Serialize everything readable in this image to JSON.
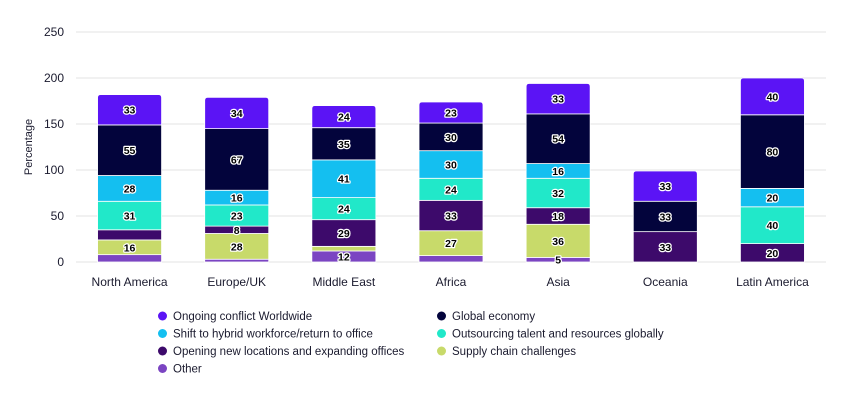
{
  "chart_data": {
    "type": "bar",
    "stacked": true,
    "title": "",
    "xlabel": "",
    "ylabel": "Percentage",
    "ylim": [
      0,
      250
    ],
    "yticks": [
      0,
      50,
      100,
      150,
      200,
      250
    ],
    "grid": true,
    "legend_position": "bottom",
    "categories": [
      "North America",
      "Europe/UK",
      "Middle East",
      "Africa",
      "Asia",
      "Oceania",
      "Latin America"
    ],
    "series": [
      {
        "name": "Other",
        "color": "#7b45c2",
        "values": [
          8,
          3,
          12,
          7,
          5,
          0,
          0
        ],
        "labels": [
          "",
          "",
          "12",
          "",
          "5",
          "",
          ""
        ]
      },
      {
        "name": "Supply chain challenges",
        "color": "#c8da6a",
        "values": [
          16,
          28,
          5,
          27,
          36,
          0,
          0
        ],
        "labels": [
          "16",
          "28",
          "",
          "27",
          "36",
          "",
          ""
        ]
      },
      {
        "name": "Opening new locations and expanding offices",
        "color": "#3d0a6b",
        "values": [
          11,
          8,
          29,
          33,
          18,
          33,
          20
        ],
        "labels": [
          "",
          "8",
          "29",
          "33",
          "18",
          "33",
          "20"
        ]
      },
      {
        "name": "Outsourcing talent and resources globally",
        "color": "#21e8c9",
        "values": [
          31,
          23,
          24,
          24,
          32,
          0,
          40
        ],
        "labels": [
          "31",
          "23",
          "24",
          "24",
          "32",
          "",
          "40"
        ]
      },
      {
        "name": "Shift to hybrid workforce/return to office",
        "color": "#14bff0",
        "values": [
          28,
          16,
          41,
          30,
          16,
          0,
          20
        ],
        "labels": [
          "28",
          "16",
          "41",
          "30",
          "16",
          "",
          "20"
        ]
      },
      {
        "name": "Global economy",
        "color": "#03043c",
        "values": [
          55,
          67,
          35,
          30,
          54,
          33,
          80
        ],
        "labels": [
          "55",
          "67",
          "35",
          "30",
          "54",
          "33",
          "80"
        ]
      },
      {
        "name": "Ongoing conflict Worldwide",
        "color": "#5b14f5",
        "values": [
          33,
          34,
          24,
          23,
          33,
          33,
          40
        ],
        "labels": [
          "33",
          "34",
          "24",
          "23",
          "33",
          "33",
          "40"
        ]
      }
    ],
    "legend": [
      {
        "name": "Ongoing conflict Worldwide",
        "color": "#5b14f5"
      },
      {
        "name": "Global economy",
        "color": "#03043c"
      },
      {
        "name": "Shift to hybrid workforce/return to office",
        "color": "#14bff0"
      },
      {
        "name": "Outsourcing talent and resources globally",
        "color": "#21e8c9"
      },
      {
        "name": "Opening new locations and expanding offices",
        "color": "#3d0a6b"
      },
      {
        "name": "Supply chain challenges",
        "color": "#c8da6a"
      },
      {
        "name": "Other",
        "color": "#7b45c2"
      }
    ],
    "colors": {
      "gridline": "#e3e3e3",
      "axis_text": "#1a1a2e"
    }
  }
}
